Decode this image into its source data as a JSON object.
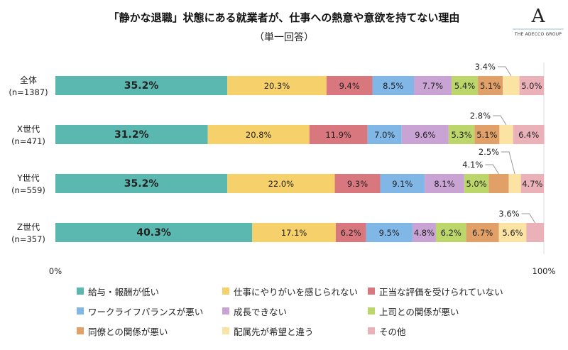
{
  "header": {
    "title": "「静かな退職」状態にある就業者が、仕事への熱意や意欲を持てない理由",
    "subtitle": "（単一回答）",
    "logo_text": "THE ADECCO GROUP",
    "logo_mark": "A"
  },
  "chart_data": {
    "type": "bar",
    "orientation": "horizontal",
    "stacked": true,
    "title": "「静かな退職」状態にある就業者が、仕事への熱意や意欲を持てない理由",
    "xlim": [
      0,
      100
    ],
    "xticks": [
      "0%",
      "100%"
    ],
    "categories": [
      {
        "label": "全体",
        "n": "(n=1387)"
      },
      {
        "label": "X世代",
        "n": "(n=471)"
      },
      {
        "label": "Y世代",
        "n": "(n=559)"
      },
      {
        "label": "Z世代",
        "n": "(n=357)"
      }
    ],
    "series": [
      {
        "name": "給与・報酬が低い",
        "color": "#5bb8b0",
        "values": [
          35.2,
          31.2,
          35.2,
          40.3
        ]
      },
      {
        "name": "仕事にやりがいを感じられない",
        "color": "#f5d06b",
        "values": [
          20.3,
          20.8,
          22.0,
          17.1
        ]
      },
      {
        "name": "正当な評価を受けられていない",
        "color": "#d9777f",
        "values": [
          9.4,
          11.9,
          9.3,
          6.2
        ]
      },
      {
        "name": "ワークライフバランスが悪い",
        "color": "#80b7e6",
        "values": [
          8.5,
          7.0,
          9.1,
          9.5
        ]
      },
      {
        "name": "成長できない",
        "color": "#c9a3d3",
        "values": [
          7.7,
          9.6,
          8.1,
          4.8
        ]
      },
      {
        "name": "上司との関係が悪い",
        "color": "#bdd66c",
        "values": [
          5.4,
          5.3,
          5.0,
          6.2
        ]
      },
      {
        "name": "同僚との関係が悪い",
        "color": "#e0a067",
        "values": [
          5.1,
          5.1,
          4.1,
          6.7
        ]
      },
      {
        "name": "配属先が希望と違う",
        "color": "#fbe3a4",
        "values": [
          3.4,
          2.8,
          2.5,
          5.6
        ]
      },
      {
        "name": "その他",
        "color": "#ebb1b9",
        "values": [
          5.0,
          6.4,
          4.7,
          3.6
        ]
      }
    ],
    "callouts": [
      [
        0,
        7
      ],
      [
        1,
        7
      ],
      [
        2,
        6
      ],
      [
        2,
        7
      ],
      [
        3,
        8
      ]
    ],
    "legend": "bottom"
  }
}
